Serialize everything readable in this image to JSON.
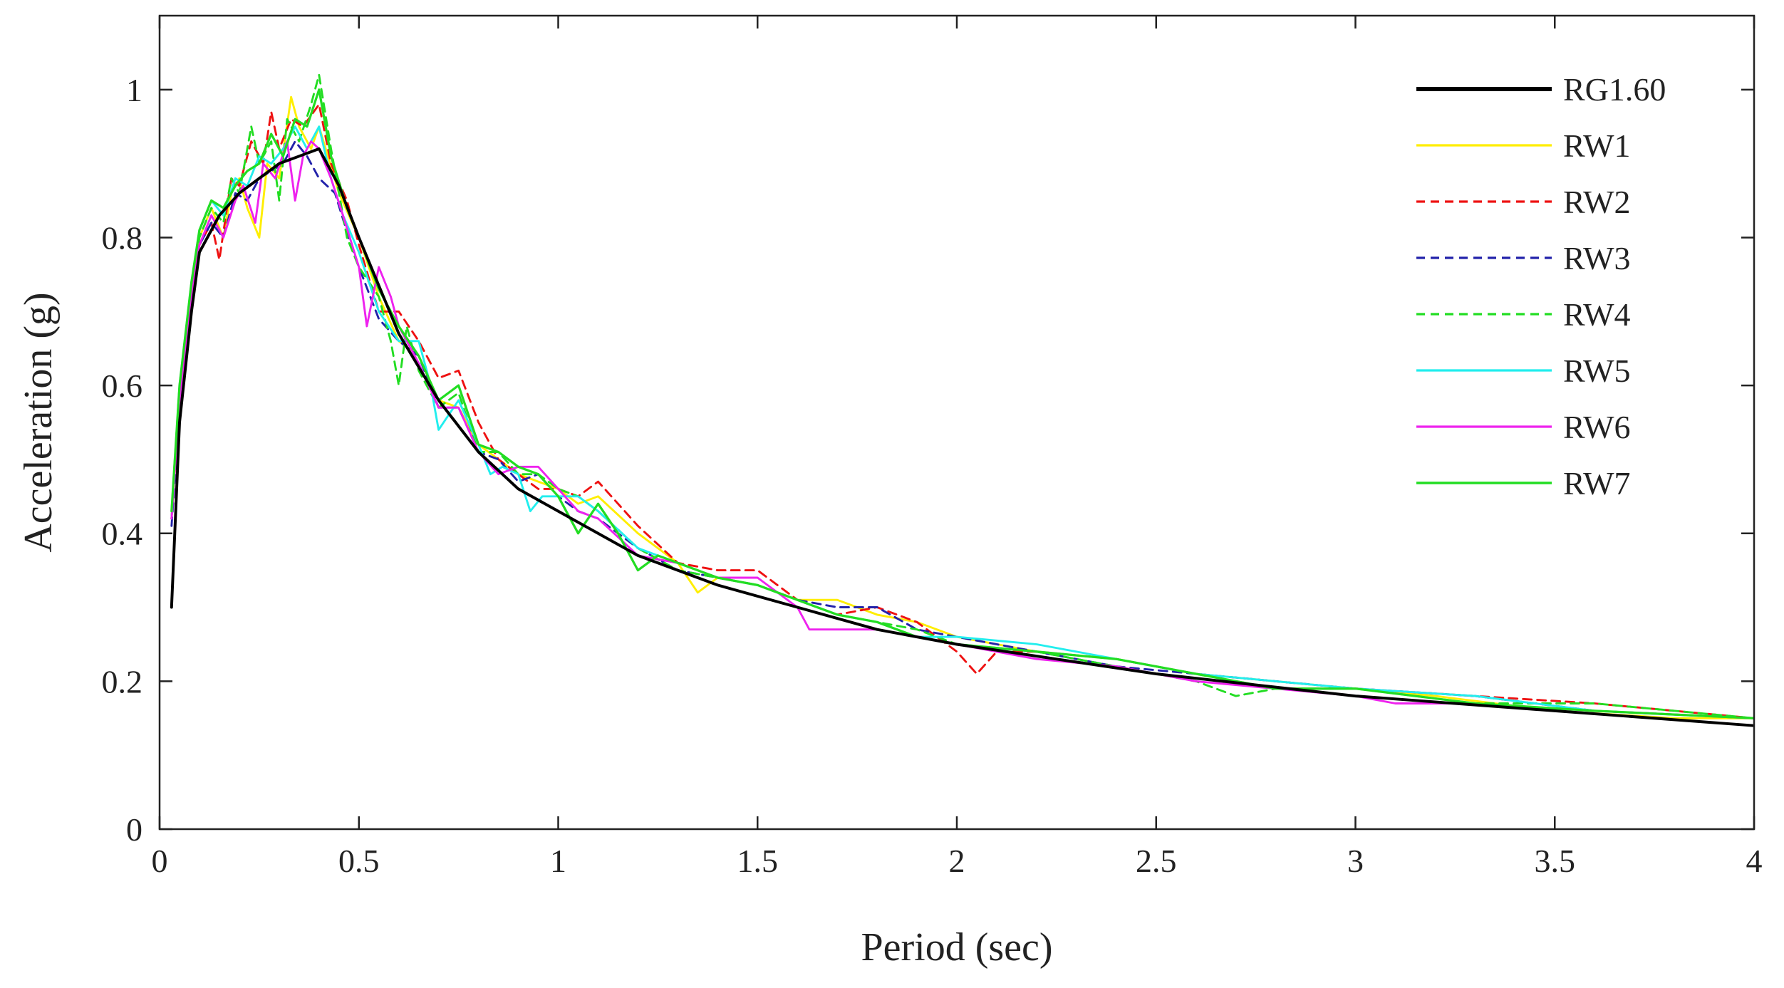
{
  "chart_data": {
    "type": "line",
    "xlabel": "Period (sec)",
    "ylabel": "Acceleration (g)",
    "xlim": [
      0,
      4
    ],
    "ylim": [
      0,
      1.1
    ],
    "xticks": [
      0,
      0.5,
      1,
      1.5,
      2,
      2.5,
      3,
      3.5,
      4
    ],
    "xtick_labels": [
      "0",
      "0.5",
      "1",
      "1.5",
      "2",
      "2.5",
      "3",
      "3.5",
      "4"
    ],
    "yticks": [
      0,
      0.2,
      0.4,
      0.6,
      0.8,
      1
    ],
    "ytick_labels": [
      "0",
      "0.2",
      "0.4",
      "0.6",
      "0.8",
      "1"
    ],
    "grid": false,
    "legend_position": "top-right",
    "series": [
      {
        "name": "RG1.60",
        "color": "#000000",
        "style": "solid",
        "width": 2.2,
        "x": [
          0.03,
          0.05,
          0.08,
          0.1,
          0.15,
          0.2,
          0.25,
          0.3,
          0.35,
          0.4,
          0.45,
          0.5,
          0.6,
          0.7,
          0.8,
          0.9,
          1.0,
          1.2,
          1.4,
          1.6,
          1.8,
          2.0,
          2.5,
          3.0,
          3.5,
          4.0
        ],
        "y": [
          0.3,
          0.55,
          0.7,
          0.78,
          0.83,
          0.86,
          0.88,
          0.9,
          0.91,
          0.92,
          0.87,
          0.8,
          0.67,
          0.58,
          0.51,
          0.46,
          0.43,
          0.37,
          0.33,
          0.3,
          0.27,
          0.25,
          0.21,
          0.18,
          0.16,
          0.14
        ]
      },
      {
        "name": "RW1",
        "color": "#ffee00",
        "style": "solid",
        "width": 1.6,
        "x": [
          0.03,
          0.05,
          0.08,
          0.1,
          0.13,
          0.16,
          0.18,
          0.2,
          0.22,
          0.25,
          0.27,
          0.3,
          0.33,
          0.35,
          0.38,
          0.4,
          0.45,
          0.5,
          0.55,
          0.6,
          0.65,
          0.7,
          0.75,
          0.8,
          0.85,
          0.9,
          0.95,
          1.0,
          1.05,
          1.1,
          1.2,
          1.3,
          1.35,
          1.4,
          1.5,
          1.6,
          1.7,
          1.8,
          1.9,
          2.0,
          2.2,
          2.4,
          2.6,
          2.8,
          3.0,
          3.2,
          3.5,
          3.8,
          4.0
        ],
        "y": [
          0.42,
          0.58,
          0.72,
          0.8,
          0.84,
          0.8,
          0.86,
          0.88,
          0.84,
          0.8,
          0.9,
          0.88,
          0.99,
          0.95,
          0.92,
          0.95,
          0.86,
          0.8,
          0.72,
          0.66,
          0.64,
          0.58,
          0.57,
          0.52,
          0.5,
          0.48,
          0.47,
          0.46,
          0.44,
          0.45,
          0.4,
          0.36,
          0.32,
          0.34,
          0.33,
          0.31,
          0.31,
          0.29,
          0.28,
          0.26,
          0.24,
          0.23,
          0.21,
          0.2,
          0.19,
          0.18,
          0.16,
          0.15,
          0.15
        ]
      },
      {
        "name": "RW2",
        "color": "#ee1111",
        "style": "dashed",
        "width": 1.6,
        "x": [
          0.03,
          0.05,
          0.08,
          0.1,
          0.13,
          0.15,
          0.18,
          0.2,
          0.23,
          0.26,
          0.28,
          0.3,
          0.33,
          0.36,
          0.4,
          0.43,
          0.47,
          0.5,
          0.55,
          0.6,
          0.65,
          0.7,
          0.75,
          0.8,
          0.85,
          0.9,
          0.95,
          1.0,
          1.05,
          1.1,
          1.2,
          1.3,
          1.4,
          1.5,
          1.6,
          1.7,
          1.8,
          1.9,
          2.0,
          2.05,
          2.1,
          2.2,
          2.4,
          2.6,
          2.8,
          3.0,
          3.3,
          3.6,
          4.0
        ],
        "y": [
          0.42,
          0.58,
          0.72,
          0.79,
          0.82,
          0.77,
          0.88,
          0.87,
          0.93,
          0.9,
          0.97,
          0.92,
          0.96,
          0.95,
          0.98,
          0.9,
          0.85,
          0.79,
          0.7,
          0.7,
          0.66,
          0.61,
          0.62,
          0.55,
          0.5,
          0.48,
          0.46,
          0.46,
          0.45,
          0.47,
          0.41,
          0.36,
          0.35,
          0.35,
          0.31,
          0.29,
          0.3,
          0.28,
          0.24,
          0.21,
          0.24,
          0.24,
          0.23,
          0.21,
          0.19,
          0.19,
          0.18,
          0.17,
          0.15
        ]
      },
      {
        "name": "RW3",
        "color": "#2222aa",
        "style": "dashed",
        "width": 1.6,
        "x": [
          0.03,
          0.05,
          0.08,
          0.1,
          0.13,
          0.16,
          0.19,
          0.22,
          0.25,
          0.28,
          0.31,
          0.34,
          0.37,
          0.4,
          0.44,
          0.48,
          0.5,
          0.55,
          0.6,
          0.65,
          0.7,
          0.75,
          0.8,
          0.85,
          0.9,
          0.95,
          1.0,
          1.05,
          1.1,
          1.2,
          1.3,
          1.4,
          1.5,
          1.6,
          1.7,
          1.8,
          1.9,
          2.0,
          2.2,
          2.4,
          2.6,
          2.8,
          3.0,
          3.3,
          3.6,
          4.0
        ],
        "y": [
          0.41,
          0.57,
          0.71,
          0.79,
          0.82,
          0.8,
          0.86,
          0.85,
          0.88,
          0.89,
          0.9,
          0.93,
          0.91,
          0.88,
          0.86,
          0.79,
          0.76,
          0.69,
          0.66,
          0.64,
          0.57,
          0.57,
          0.51,
          0.5,
          0.47,
          0.48,
          0.45,
          0.43,
          0.42,
          0.38,
          0.35,
          0.34,
          0.33,
          0.31,
          0.3,
          0.3,
          0.27,
          0.26,
          0.24,
          0.22,
          0.21,
          0.2,
          0.19,
          0.18,
          0.16,
          0.15
        ]
      },
      {
        "name": "RW4",
        "color": "#22dd22",
        "style": "dashed",
        "width": 1.6,
        "x": [
          0.03,
          0.05,
          0.08,
          0.1,
          0.13,
          0.16,
          0.18,
          0.2,
          0.23,
          0.25,
          0.28,
          0.3,
          0.32,
          0.35,
          0.38,
          0.4,
          0.43,
          0.47,
          0.5,
          0.55,
          0.58,
          0.6,
          0.62,
          0.65,
          0.7,
          0.75,
          0.8,
          0.85,
          0.9,
          0.95,
          1.0,
          1.05,
          1.1,
          1.2,
          1.3,
          1.4,
          1.5,
          1.6,
          1.7,
          1.8,
          1.9,
          2.0,
          2.2,
          2.4,
          2.6,
          2.7,
          2.8,
          3.0,
          3.3,
          3.6,
          4.0
        ],
        "y": [
          0.43,
          0.6,
          0.73,
          0.8,
          0.84,
          0.82,
          0.88,
          0.86,
          0.95,
          0.9,
          0.93,
          0.85,
          0.96,
          0.93,
          0.98,
          1.02,
          0.92,
          0.8,
          0.76,
          0.72,
          0.66,
          0.6,
          0.68,
          0.62,
          0.57,
          0.59,
          0.51,
          0.51,
          0.48,
          0.48,
          0.46,
          0.45,
          0.43,
          0.38,
          0.35,
          0.34,
          0.33,
          0.31,
          0.29,
          0.28,
          0.27,
          0.25,
          0.24,
          0.22,
          0.2,
          0.18,
          0.19,
          0.19,
          0.17,
          0.17,
          0.15
        ]
      },
      {
        "name": "RW5",
        "color": "#22eeee",
        "style": "solid",
        "width": 1.6,
        "x": [
          0.03,
          0.05,
          0.08,
          0.1,
          0.13,
          0.16,
          0.19,
          0.22,
          0.25,
          0.28,
          0.31,
          0.34,
          0.37,
          0.4,
          0.43,
          0.46,
          0.5,
          0.55,
          0.6,
          0.65,
          0.68,
          0.7,
          0.75,
          0.8,
          0.83,
          0.86,
          0.9,
          0.93,
          0.96,
          1.0,
          1.05,
          1.1,
          1.2,
          1.3,
          1.4,
          1.5,
          1.6,
          1.7,
          1.8,
          1.9,
          2.0,
          2.2,
          2.4,
          2.6,
          2.8,
          3.0,
          3.3,
          3.6,
          4.0
        ],
        "y": [
          0.42,
          0.6,
          0.74,
          0.81,
          0.85,
          0.83,
          0.88,
          0.87,
          0.91,
          0.9,
          0.92,
          0.95,
          0.92,
          0.95,
          0.88,
          0.83,
          0.78,
          0.7,
          0.66,
          0.66,
          0.6,
          0.54,
          0.58,
          0.52,
          0.48,
          0.49,
          0.48,
          0.43,
          0.45,
          0.45,
          0.45,
          0.43,
          0.38,
          0.36,
          0.34,
          0.33,
          0.31,
          0.29,
          0.28,
          0.26,
          0.26,
          0.25,
          0.23,
          0.21,
          0.2,
          0.19,
          0.18,
          0.16,
          0.15
        ]
      },
      {
        "name": "RW6",
        "color": "#ee22ee",
        "style": "solid",
        "width": 1.6,
        "x": [
          0.03,
          0.05,
          0.08,
          0.1,
          0.13,
          0.16,
          0.19,
          0.21,
          0.24,
          0.26,
          0.29,
          0.32,
          0.34,
          0.36,
          0.38,
          0.4,
          0.43,
          0.46,
          0.5,
          0.52,
          0.55,
          0.58,
          0.6,
          0.65,
          0.7,
          0.75,
          0.8,
          0.85,
          0.9,
          0.95,
          1.0,
          1.05,
          1.1,
          1.2,
          1.3,
          1.4,
          1.5,
          1.6,
          1.63,
          1.7,
          1.8,
          1.9,
          2.0,
          2.2,
          2.4,
          2.6,
          2.8,
          3.0,
          3.1,
          3.3,
          3.6,
          4.0
        ],
        "y": [
          0.42,
          0.58,
          0.72,
          0.79,
          0.83,
          0.8,
          0.85,
          0.87,
          0.82,
          0.9,
          0.88,
          0.93,
          0.85,
          0.91,
          0.93,
          0.92,
          0.88,
          0.83,
          0.76,
          0.68,
          0.76,
          0.72,
          0.68,
          0.63,
          0.57,
          0.57,
          0.51,
          0.48,
          0.49,
          0.49,
          0.46,
          0.43,
          0.42,
          0.37,
          0.36,
          0.34,
          0.34,
          0.3,
          0.27,
          0.27,
          0.27,
          0.26,
          0.25,
          0.23,
          0.22,
          0.2,
          0.19,
          0.18,
          0.17,
          0.17,
          0.16,
          0.15
        ]
      },
      {
        "name": "RW7",
        "color": "#22dd22",
        "style": "solid",
        "width": 1.8,
        "x": [
          0.03,
          0.05,
          0.08,
          0.1,
          0.13,
          0.16,
          0.19,
          0.22,
          0.25,
          0.28,
          0.31,
          0.34,
          0.37,
          0.4,
          0.43,
          0.47,
          0.5,
          0.55,
          0.6,
          0.65,
          0.7,
          0.75,
          0.8,
          0.85,
          0.9,
          0.95,
          1.0,
          1.05,
          1.1,
          1.15,
          1.2,
          1.25,
          1.3,
          1.4,
          1.5,
          1.6,
          1.7,
          1.8,
          1.9,
          2.0,
          2.2,
          2.4,
          2.6,
          2.8,
          3.0,
          3.3,
          3.6,
          4.0
        ],
        "y": [
          0.43,
          0.6,
          0.74,
          0.81,
          0.85,
          0.84,
          0.87,
          0.89,
          0.9,
          0.94,
          0.91,
          0.96,
          0.95,
          1.0,
          0.91,
          0.84,
          0.8,
          0.73,
          0.68,
          0.64,
          0.58,
          0.6,
          0.52,
          0.51,
          0.49,
          0.48,
          0.45,
          0.4,
          0.44,
          0.4,
          0.35,
          0.37,
          0.36,
          0.34,
          0.33,
          0.31,
          0.29,
          0.28,
          0.26,
          0.25,
          0.24,
          0.23,
          0.21,
          0.19,
          0.19,
          0.17,
          0.16,
          0.15
        ]
      }
    ]
  }
}
